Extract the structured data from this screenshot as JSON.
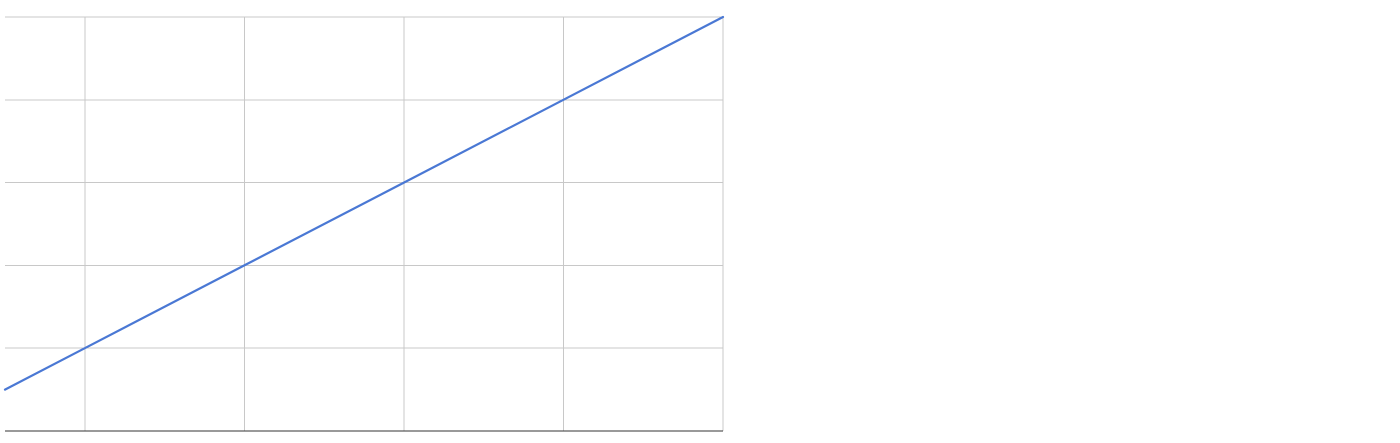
{
  "chart_data": {
    "type": "line",
    "title": "",
    "xlabel": "",
    "ylabel": "",
    "xlim": [
      -1,
      8
    ],
    "ylim": [
      0,
      5
    ],
    "grid": true,
    "x_gridlines": [
      0,
      2,
      4,
      6,
      8
    ],
    "y_gridlines": [
      0,
      1,
      2,
      3,
      4,
      5
    ],
    "series": [
      {
        "color": "#4a78d4",
        "x": [
          -1,
          0,
          2,
          4,
          6,
          8
        ],
        "y": [
          0.5,
          1,
          2,
          3,
          4,
          5
        ]
      }
    ]
  }
}
